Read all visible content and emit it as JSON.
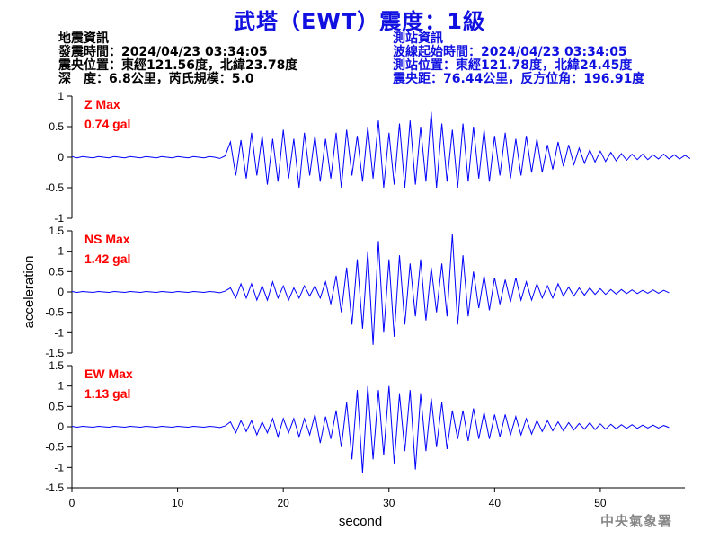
{
  "title": "武塔（EWT）震度：1級",
  "quake_info": {
    "heading": "地震資訊",
    "time": "發震時間：2024/04/23 03:34:05",
    "epicenter": "震央位置：東經121.56度，北緯23.78度",
    "depth_magnitude": "深　度：6.8公里，芮氏規模：5.0"
  },
  "station_info": {
    "heading": "測站資訊",
    "wave_start": "波線起始時間：2024/04/23 03:34:05",
    "location": "測站位置：東經121.78度，北緯24.45度",
    "distance": "震央距：76.44公里，反方位角：196.91度"
  },
  "watermark": "中央氣象署",
  "colors": {
    "title": "#1010e0",
    "trace": "#0000ff",
    "max_label": "#ff0000",
    "station_text": "#1010e0"
  },
  "chart_data": {
    "type": "line",
    "xlabel": "second",
    "ylabel": "acceleration",
    "xlim": [
      0,
      58
    ],
    "xticks": [
      0,
      10,
      20,
      30,
      40,
      50
    ],
    "grid": false,
    "panels": [
      {
        "component": "Z",
        "max_label": "Z Max",
        "max_value": "0.74 gal",
        "ylim": [
          -1,
          1
        ],
        "yticks": [
          -1,
          -0.5,
          0,
          0.5,
          1
        ],
        "samples_per_second": 2,
        "x_start": 0,
        "values": [
          0.01,
          -0.01,
          0.01,
          0,
          -0.01,
          0.01,
          0,
          -0.01,
          0.01,
          0,
          -0.01,
          0.01,
          0,
          -0.01,
          0.01,
          0,
          -0.01,
          0.01,
          0,
          -0.01,
          0.01,
          0,
          -0.01,
          0.01,
          0,
          -0.01,
          0.01,
          0,
          -0.02,
          0.02,
          0.25,
          -0.3,
          0.28,
          -0.35,
          0.4,
          -0.3,
          0.35,
          -0.45,
          0.3,
          -0.4,
          0.45,
          -0.35,
          0.3,
          -0.5,
          0.4,
          -0.3,
          0.35,
          -0.4,
          0.3,
          -0.35,
          0.4,
          -0.5,
          0.45,
          -0.3,
          0.35,
          -0.4,
          0.5,
          -0.35,
          0.6,
          -0.5,
          0.4,
          -0.45,
          0.55,
          -0.5,
          0.6,
          -0.45,
          0.5,
          -0.4,
          0.74,
          -0.5,
          0.55,
          -0.4,
          0.45,
          -0.5,
          0.55,
          -0.4,
          0.5,
          -0.35,
          0.45,
          -0.4,
          0.35,
          -0.3,
          0.4,
          -0.35,
          0.3,
          -0.3,
          0.35,
          -0.25,
          0.3,
          -0.25,
          0.2,
          -0.2,
          0.25,
          -0.15,
          0.2,
          -0.12,
          0.15,
          -0.1,
          0.12,
          -0.08,
          0.1,
          -0.07,
          0.08,
          -0.06,
          0.06,
          -0.05,
          0.05,
          -0.04,
          0.05,
          -0.04,
          0.04,
          -0.03,
          0.05,
          -0.03,
          0.04,
          -0.03,
          0.03,
          -0.02
        ]
      },
      {
        "component": "NS",
        "max_label": "NS Max",
        "max_value": "1.42 gal",
        "ylim": [
          -1.5,
          1.5
        ],
        "yticks": [
          -1.5,
          -1,
          -0.5,
          0,
          0.5,
          1,
          1.5
        ],
        "samples_per_second": 2,
        "x_start": 0,
        "values": [
          0.01,
          -0.01,
          0.01,
          0,
          -0.01,
          0.01,
          0,
          -0.01,
          0.01,
          0,
          -0.01,
          0.01,
          0,
          -0.01,
          0.01,
          0,
          -0.01,
          0.01,
          0,
          -0.01,
          0.01,
          0,
          -0.01,
          0.01,
          0,
          -0.01,
          0.01,
          0,
          -0.02,
          0.02,
          0.1,
          -0.15,
          0.2,
          -0.15,
          0.2,
          -0.2,
          0.15,
          -0.2,
          0.25,
          -0.15,
          0.15,
          -0.2,
          0.1,
          -0.15,
          0.15,
          -0.1,
          0.15,
          -0.15,
          0.25,
          -0.3,
          0.4,
          -0.5,
          0.6,
          -0.8,
          0.8,
          -0.9,
          1.0,
          -1.3,
          1.25,
          -1.0,
          0.8,
          -1.1,
          0.9,
          -0.8,
          0.7,
          -0.6,
          0.8,
          -0.7,
          0.6,
          -0.5,
          0.7,
          -0.6,
          1.42,
          -0.8,
          0.9,
          -0.6,
          0.5,
          -0.4,
          0.4,
          -0.45,
          0.35,
          -0.3,
          0.3,
          -0.25,
          0.35,
          -0.2,
          0.25,
          -0.2,
          0.2,
          -0.15,
          0.15,
          -0.15,
          0.2,
          -0.1,
          0.12,
          -0.1,
          0.1,
          -0.08,
          0.1,
          -0.06,
          0.08,
          -0.06,
          0.06,
          -0.05,
          0.06,
          -0.04,
          0.05,
          -0.04,
          0.04,
          -0.03,
          0.05,
          -0.03,
          0.04,
          -0.02
        ]
      },
      {
        "component": "EW",
        "max_label": "EW Max",
        "max_value": "1.13 gal",
        "ylim": [
          -1.5,
          1.5
        ],
        "yticks": [
          -1.5,
          -1,
          -0.5,
          0,
          0.5,
          1,
          1.5
        ],
        "samples_per_second": 2,
        "x_start": 0,
        "values": [
          0.01,
          -0.01,
          0.01,
          0,
          -0.01,
          0.01,
          0,
          -0.01,
          0.01,
          0,
          -0.01,
          0.01,
          0,
          -0.01,
          0.01,
          0,
          -0.01,
          0.01,
          0,
          -0.01,
          0.01,
          0,
          -0.01,
          0.01,
          0,
          -0.01,
          0.01,
          0,
          -0.02,
          0.02,
          0.12,
          -0.15,
          0.15,
          -0.12,
          0.15,
          -0.2,
          0.12,
          -0.15,
          0.2,
          -0.25,
          0.2,
          -0.15,
          0.2,
          -0.25,
          0.2,
          -0.2,
          0.3,
          -0.4,
          0.25,
          -0.3,
          0.4,
          -0.5,
          0.6,
          -0.8,
          0.9,
          -1.13,
          1.0,
          -0.8,
          0.9,
          -0.7,
          1.0,
          -0.9,
          0.8,
          -0.6,
          0.9,
          -1.05,
          0.8,
          -0.6,
          0.7,
          -0.5,
          0.6,
          -0.55,
          0.4,
          -0.3,
          0.4,
          -0.35,
          0.45,
          -0.3,
          0.35,
          -0.3,
          0.3,
          -0.25,
          0.3,
          -0.2,
          0.25,
          -0.2,
          0.2,
          -0.18,
          0.15,
          -0.12,
          0.15,
          -0.1,
          0.12,
          -0.1,
          0.1,
          -0.08,
          0.08,
          -0.06,
          0.1,
          -0.07,
          0.07,
          -0.06,
          0.06,
          -0.05,
          0.05,
          -0.04,
          0.05,
          -0.04,
          0.04,
          -0.03,
          0.04,
          -0.03,
          0.03,
          -0.02
        ]
      }
    ]
  }
}
